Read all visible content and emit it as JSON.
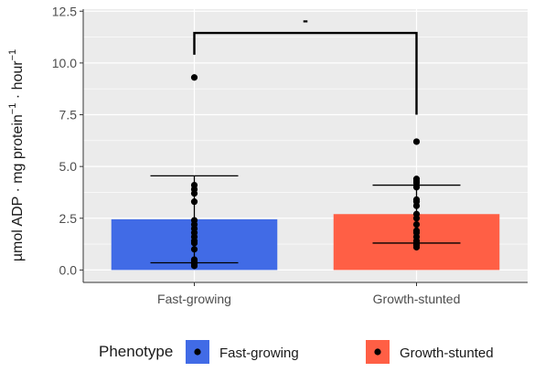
{
  "chart_data": {
    "type": "bar",
    "categories": [
      "Fast-growing",
      "Growth-stunted"
    ],
    "ylabel_parts": {
      "main": "µmol ADP · mg protein",
      "exp1": "−1",
      "mid": " · hour",
      "exp2": "−1"
    },
    "ylim": [
      -0.6,
      12.6
    ],
    "yticks": [
      0.0,
      2.5,
      5.0,
      7.5,
      10.0,
      12.5
    ],
    "ytick_labels": [
      "0.0",
      "2.5",
      "5.0",
      "7.5",
      "10.0",
      "12.5"
    ],
    "grid": true,
    "series": [
      {
        "name": "Fast-growing",
        "category": "Fast-growing",
        "color": "#416BE6",
        "mean": 2.45,
        "error_low": 0.35,
        "error_high": 4.55,
        "points": [
          9.3,
          4.1,
          3.9,
          3.7,
          3.3,
          2.4,
          2.2,
          2.0,
          1.8,
          1.6,
          1.4,
          1.3,
          1.0,
          0.5,
          0.4,
          0.3,
          0.2
        ]
      },
      {
        "name": "Growth-stunted",
        "category": "Growth-stunted",
        "color": "#FF5F45",
        "mean": 2.7,
        "error_low": 1.3,
        "error_high": 4.1,
        "points": [
          6.2,
          4.4,
          4.3,
          4.2,
          4.0,
          3.4,
          3.3,
          3.1,
          2.7,
          2.5,
          2.2,
          1.9,
          1.8,
          1.6,
          1.4,
          1.3,
          1.2,
          1.1
        ]
      }
    ],
    "significance": {
      "label": "-",
      "y": 11.45,
      "drop_left": 10.4,
      "drop_right": 7.5
    },
    "legend": {
      "title": "Phenotype",
      "position": "bottom",
      "items": [
        "Fast-growing",
        "Growth-stunted"
      ]
    }
  }
}
